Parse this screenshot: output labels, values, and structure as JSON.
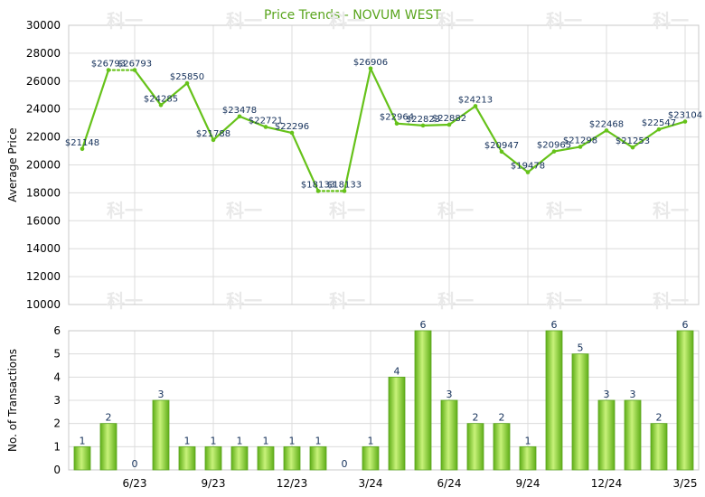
{
  "chart_data": [
    {
      "type": "line",
      "title": "Price Trends - NOVUM WEST",
      "ylabel": "Average Price",
      "ylim": [
        10000,
        30000
      ],
      "yticks": [
        10000,
        12000,
        14000,
        16000,
        18000,
        20000,
        22000,
        24000,
        26000,
        28000,
        30000
      ],
      "months": [
        "4/23",
        "5/23",
        "6/23",
        "7/23",
        "8/23",
        "9/23",
        "10/23",
        "11/23",
        "12/23",
        "1/24",
        "2/24",
        "3/24",
        "4/24",
        "5/24",
        "6/24",
        "7/24",
        "8/24",
        "9/24",
        "10/24",
        "11/24",
        "12/24",
        "1/25",
        "2/25",
        "3/25"
      ],
      "values": [
        21148,
        26793,
        26793,
        24285,
        25850,
        21788,
        23478,
        22721,
        22296,
        18133,
        18133,
        26906,
        22964,
        22823,
        22882,
        24213,
        20947,
        19478,
        20965,
        21298,
        22468,
        21253,
        22547,
        23104
      ],
      "labels": [
        "$21148",
        "$26793",
        "$26793",
        "$24285",
        "$25850",
        "$21788",
        "$23478",
        "$22721",
        "$22296",
        "$18133",
        "$18133",
        "$26906",
        "$22964",
        "$22823",
        "$22882",
        "$24213",
        "$20947",
        "$19478",
        "$20965",
        "$21298",
        "$22468",
        "$21253",
        "$22547",
        "$23104"
      ],
      "series_color": "#66c21a"
    },
    {
      "type": "bar",
      "ylabel": "No. of Transactions",
      "ylim": [
        0,
        6
      ],
      "yticks": [
        0,
        1,
        2,
        3,
        4,
        5,
        6
      ],
      "values": [
        1,
        2,
        0,
        3,
        1,
        1,
        1,
        1,
        1,
        1,
        0,
        1,
        4,
        6,
        3,
        2,
        2,
        1,
        6,
        5,
        3,
        3,
        2,
        6
      ],
      "xtick_labels": [
        "6/23",
        "9/23",
        "12/23",
        "3/24",
        "6/24",
        "9/24",
        "12/24",
        "3/25"
      ],
      "xtick_month_index": [
        2,
        5,
        8,
        11,
        14,
        17,
        20,
        23
      ],
      "bar_color": "#7fd02a"
    }
  ],
  "watermark_text": "科一"
}
